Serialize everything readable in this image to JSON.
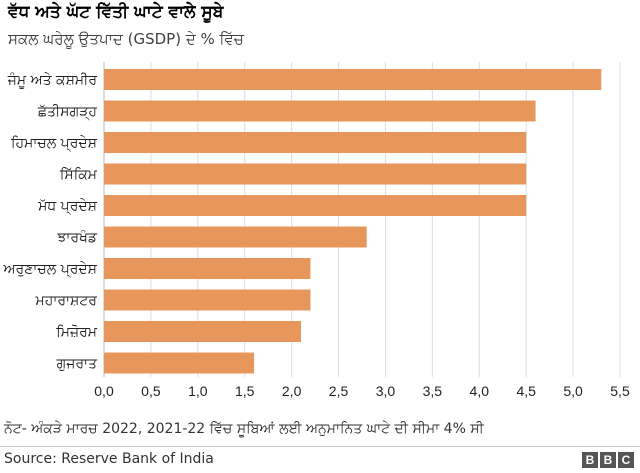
{
  "chart_data": {
    "type": "bar",
    "orientation": "horizontal",
    "title": "ਵੱਧ ਅਤੇ ਘੱਟ ਵਿੱਤੀ ਘਾਟੇ ਵਾਲੇ ਸੂਬੇ",
    "subtitle": "ਸਕਲ ਘਰੇਲੂ ਉਤਪਾਦ (GSDP) ਦੇ % ਵਿੱਚ",
    "categories": [
      "ਜੰਮੂ ਅਤੇ ਕਸ਼ਮੀਰ",
      "ਛੱਤੀਸਗੜ੍ਹ",
      "ਹਿਮਾਚਲ ਪ੍ਰਦੇਸ਼",
      "ਸਿੱਕਿਮ",
      "ਮੱਧ ਪ੍ਰਦੇਸ਼",
      "ਝਾਰਖੰਡ",
      "ਅਰੁਣਾਚਲ ਪ੍ਰਦੇਸ਼",
      "ਮਹਾਰਾਸ਼ਟਰ",
      "ਮਿਜ਼ੋਰਮ",
      "ਗੁਜਰਾਤ"
    ],
    "values": [
      5.3,
      4.6,
      4.5,
      4.5,
      4.5,
      2.8,
      2.2,
      2.2,
      2.1,
      1.6
    ],
    "xlim": [
      0,
      5.5
    ],
    "xticks": [
      "0,0",
      "0,5",
      "1,0",
      "1,5",
      "2,0",
      "2,5",
      "3,0",
      "3,5",
      "4,0",
      "4,5",
      "5,0",
      "5,5"
    ],
    "xlabel": "",
    "ylabel": "",
    "grid": true,
    "bar_color": "#e8975c"
  },
  "note": "ਨੋਟ- ਅੰਕੜੇ ਮਾਰਚ 2022, 2021-22 ਵਿੱਚ ਸੂਬਿਆਂ ਲਈ ਅਨੁਮਾਨਿਤ ਘਾਟੇ ਦੀ ਸੀਮਾ 4% ਸੀ",
  "source": "Source: Reserve Bank of India",
  "logo": {
    "letters": [
      "B",
      "B",
      "C"
    ]
  }
}
